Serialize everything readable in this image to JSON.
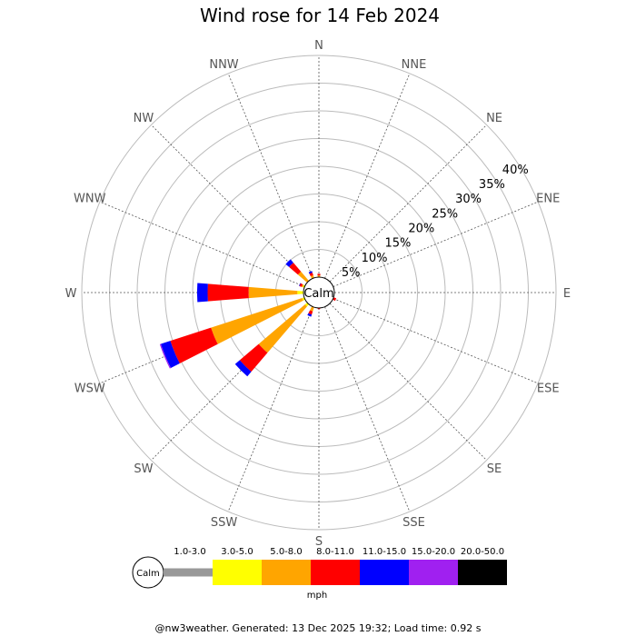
{
  "chart_data": {
    "type": "windrose",
    "title": "Wind rose for 14 Feb 2024",
    "directions": [
      "N",
      "NNE",
      "NE",
      "ENE",
      "E",
      "ESE",
      "SE",
      "SSE",
      "S",
      "SSW",
      "SW",
      "WSW",
      "W",
      "WNW",
      "NW",
      "NNW"
    ],
    "ring_values": [
      5,
      10,
      15,
      20,
      25,
      30,
      35,
      40
    ],
    "ring_labels": [
      "5%",
      "10%",
      "15%",
      "20%",
      "25%",
      "30%",
      "35%",
      "40%"
    ],
    "max_percent": 40,
    "calm_label": "Calm",
    "units": "mph",
    "speed_bins": [
      {
        "label": "1.0-3.0",
        "color": "#999999"
      },
      {
        "label": "3.0-5.0",
        "color": "#ffff00"
      },
      {
        "label": "5.0-8.0",
        "color": "#ffa500"
      },
      {
        "label": "8.0-11.0",
        "color": "#ff0000"
      },
      {
        "label": "11.0-15.0",
        "color": "#0000ff"
      },
      {
        "label": "15.0-20.0",
        "color": "#a020f0"
      },
      {
        "label": "20.0-50.0",
        "color": "#000000"
      }
    ],
    "series": [
      {
        "direction": "N",
        "values": [
          0,
          0.1,
          0.2,
          0.3,
          0,
          0,
          0
        ]
      },
      {
        "direction": "NNE",
        "values": [
          0,
          0,
          0,
          0,
          0,
          0,
          0
        ]
      },
      {
        "direction": "NE",
        "values": [
          0,
          0,
          0,
          0,
          0,
          0,
          0
        ]
      },
      {
        "direction": "ENE",
        "values": [
          0,
          0,
          0,
          0,
          0,
          0,
          0
        ]
      },
      {
        "direction": "E",
        "values": [
          0,
          0,
          0,
          0,
          0,
          0,
          0
        ]
      },
      {
        "direction": "ESE",
        "values": [
          0,
          0,
          0,
          0.5,
          0,
          0,
          0
        ]
      },
      {
        "direction": "SE",
        "values": [
          0,
          0,
          0,
          0,
          0,
          0,
          0
        ]
      },
      {
        "direction": "SSE",
        "values": [
          0,
          0,
          0,
          0,
          0,
          0,
          0
        ]
      },
      {
        "direction": "S",
        "values": [
          0,
          0,
          0,
          0.2,
          0,
          0,
          0
        ]
      },
      {
        "direction": "SSW",
        "values": [
          0,
          0,
          0.8,
          0.6,
          0.4,
          0,
          0
        ]
      },
      {
        "direction": "SW",
        "values": [
          0,
          0.5,
          11,
          4.5,
          1.1,
          0,
          0
        ]
      },
      {
        "direction": "WSW",
        "values": [
          0,
          0.4,
          17.3,
          7.7,
          1.8,
          0.2,
          0
        ]
      },
      {
        "direction": "W",
        "values": [
          0,
          1.1,
          8.8,
          7.4,
          1.9,
          0,
          0
        ]
      },
      {
        "direction": "WNW",
        "values": [
          0,
          0.3,
          0.2,
          0.4,
          0.1,
          0,
          0
        ]
      },
      {
        "direction": "NW",
        "values": [
          0,
          0,
          2.2,
          2.1,
          0.8,
          0,
          0
        ]
      },
      {
        "direction": "NNW",
        "values": [
          0,
          0,
          0.5,
          0.5,
          0.3,
          0,
          0
        ]
      }
    ]
  },
  "footer": "@nw3weather. Generated: 13 Dec 2025 19:32; Load time: 0.92 s"
}
